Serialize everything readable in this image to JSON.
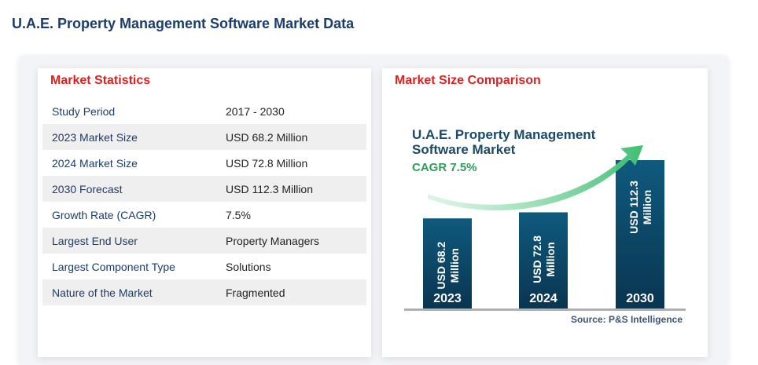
{
  "page": {
    "title": "U.A.E. Property Management Software Market Data"
  },
  "stats": {
    "heading": "Market Statistics",
    "rows": [
      {
        "label": "Study Period",
        "value": "2017 - 2030"
      },
      {
        "label": "2023 Market Size",
        "value": "USD 68.2 Million"
      },
      {
        "label": "2024 Market Size",
        "value": "USD 72.8 Million"
      },
      {
        "label": "2030 Forecast",
        "value": "USD 112.3 Million"
      },
      {
        "label": "Growth Rate (CAGR)",
        "value": "7.5%"
      },
      {
        "label": "Largest End User",
        "value": "Property Managers"
      },
      {
        "label": "Largest Component Type",
        "value": "Solutions"
      },
      {
        "label": "Nature of the Market",
        "value": "Fragmented"
      }
    ]
  },
  "comparison": {
    "heading": "Market Size Comparison",
    "source": "Source: P&S Intelligence"
  },
  "chart_data": {
    "type": "bar",
    "title_lines": [
      "U.A.E. Property Management",
      "Software Market"
    ],
    "subtitle": "CAGR 7.5%",
    "categories": [
      "2023",
      "2024",
      "2030"
    ],
    "values": [
      68.2,
      72.8,
      112.3
    ],
    "bar_labels": [
      [
        "USD 68.2",
        "Million"
      ],
      [
        "USD 72.8",
        "Million"
      ],
      [
        "USD 112.3",
        "Million"
      ]
    ],
    "unit": "USD Million",
    "grid": false,
    "colors": {
      "bar_top": "#0e5a7e",
      "bar_bottom": "#0a3550",
      "title": "#1a4a6b",
      "cagr": "#2e9e57",
      "arrow": "#3fbf72",
      "baseline": "#b0b0b0"
    }
  }
}
